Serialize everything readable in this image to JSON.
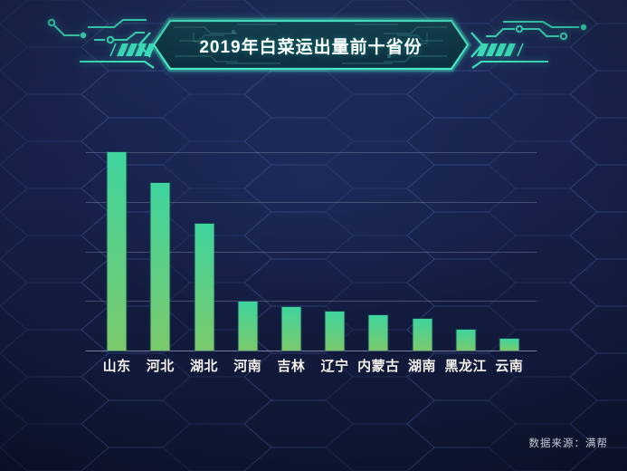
{
  "header": {
    "title": "2019年白菜运出量前十省份"
  },
  "footer": {
    "source_label": "数据来源：满帮"
  },
  "colors": {
    "accent_teal": "#3fe9c3",
    "banner_fill_top": "#15424f",
    "banner_fill_bottom": "#0b2e3d",
    "bar_top": "#3fd49e",
    "bar_bottom": "#7bca6c",
    "gridline": "rgba(176,186,210,0.30)",
    "axis_line": "rgba(200,208,228,0.55)",
    "label_text": "#f3f0ea",
    "source_text": "#c7ccd8",
    "background_top": "#202e5e",
    "background_bottom": "#0e1631"
  },
  "chart_data": {
    "type": "bar",
    "title": "2019年白菜运出量前十省份",
    "categories": [
      "山东",
      "河北",
      "湖北",
      "河南",
      "吉林",
      "辽宁",
      "内蒙古",
      "湖南",
      "黑龙江",
      "云南"
    ],
    "values": [
      100,
      84.5,
      64,
      24.5,
      21.8,
      19.6,
      18,
      16.1,
      10.4,
      5.8
    ],
    "xlabel": "",
    "ylabel": "",
    "ylim": [
      0,
      100
    ],
    "grid_divisions": 4,
    "y_tick_labels_visible": false,
    "legend": "none",
    "grid": "horizontal lines only"
  }
}
